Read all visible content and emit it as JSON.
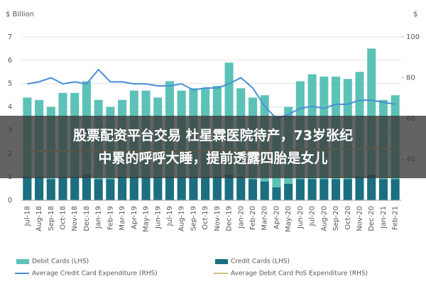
{
  "chart_data": {
    "type": "bar-line",
    "y_label": "$ Billion",
    "y2_label": "$",
    "categories": [
      "Jul-18",
      "Aug-18",
      "Sep-18",
      "Oct-18",
      "Nov-18",
      "Dec-18",
      "Jan-19",
      "Feb-19",
      "Mar-19",
      "Apr-19",
      "May-19",
      "Jun-19",
      "Jul-19",
      "Aug-19",
      "Sep-19",
      "Oct-19",
      "Nov-19",
      "Dec-19",
      "Jan-20",
      "Feb-20",
      "Mar-20",
      "Apr-20",
      "May-20",
      "Jun-20",
      "Jul-20",
      "Aug-20",
      "Sep-20",
      "Oct-20",
      "Nov-20",
      "Dec-20",
      "Jan-21",
      "Feb-21"
    ],
    "series": [
      {
        "name": "Debit Cards (LHS)",
        "kind": "bar",
        "color": "#5cc2b8",
        "values": [
          4.4,
          4.3,
          4.0,
          4.6,
          4.6,
          5.1,
          4.3,
          4.0,
          4.3,
          4.7,
          4.7,
          4.4,
          5.1,
          4.7,
          4.8,
          4.8,
          4.9,
          5.9,
          4.8,
          4.4,
          4.5,
          3.6,
          4.0,
          5.1,
          5.4,
          5.3,
          5.3,
          5.2,
          5.5,
          6.5,
          4.3,
          4.5
        ]
      },
      {
        "name": "Credit Cards (LHS)",
        "kind": "bar",
        "color": "#1b6f80",
        "values": [
          1.0,
          1.0,
          0.9,
          1.0,
          1.0,
          1.1,
          0.9,
          0.9,
          1.0,
          1.0,
          1.0,
          1.0,
          1.0,
          1.0,
          1.0,
          1.0,
          1.0,
          1.1,
          1.0,
          0.9,
          0.8,
          0.55,
          0.7,
          0.9,
          0.9,
          0.9,
          0.9,
          0.9,
          1.0,
          1.1,
          0.9,
          0.9
        ]
      },
      {
        "name": "Average Credit Card Expenditure (RHS)",
        "kind": "line",
        "axis": "y2",
        "color": "#4a8fd6",
        "values": [
          77,
          78,
          80,
          77,
          78,
          77,
          84,
          78,
          78,
          77,
          77,
          76,
          76,
          77,
          74,
          75,
          75,
          77,
          80,
          75,
          66,
          60,
          62,
          65,
          66,
          65,
          67,
          67,
          69,
          69,
          68,
          67
        ]
      },
      {
        "name": "Average Debit Card PoS Expenditure (RHS)",
        "kind": "line",
        "axis": "y2",
        "color": "#c9c27a",
        "values": [
          44,
          44,
          44,
          44,
          44,
          45,
          44,
          44,
          44,
          44,
          44,
          44,
          44,
          44,
          44,
          44,
          44,
          45,
          44,
          44,
          44,
          43,
          44,
          45,
          45,
          45,
          45,
          45,
          45,
          46,
          45,
          45
        ]
      }
    ],
    "ylim": [
      0,
      7
    ],
    "yticks": [
      0,
      1,
      2,
      3,
      4,
      5,
      6,
      7
    ],
    "y2lim": [
      20,
      100
    ],
    "y2ticks": [
      40,
      60,
      80,
      100
    ],
    "grid": true
  },
  "overlay": [
    "股票配资平台交易 杜星霖医院待产，73岁张纪",
    "中累的呼呼大睡，提前透露四胎是女儿"
  ]
}
